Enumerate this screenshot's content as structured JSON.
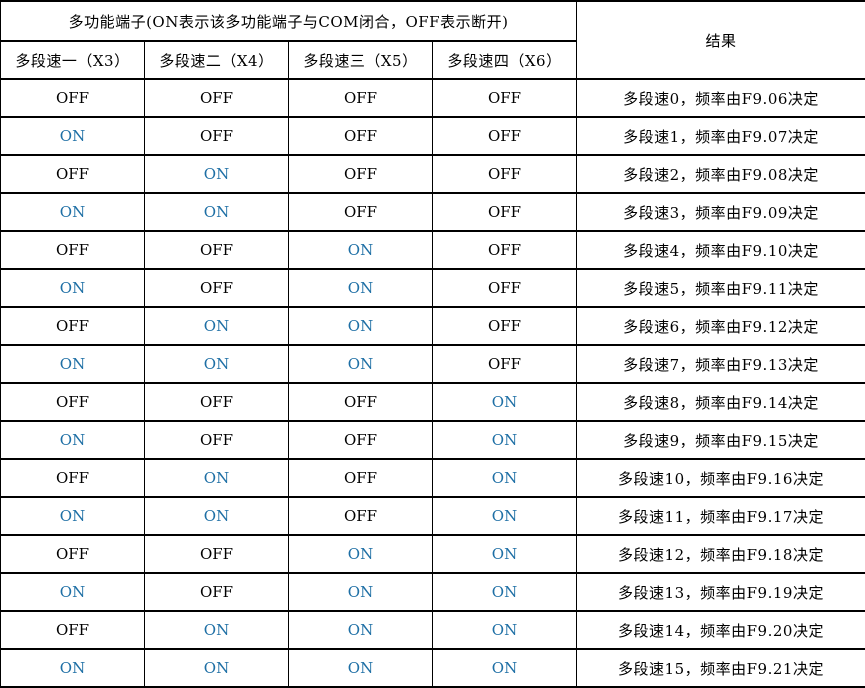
{
  "table": {
    "header_title": "多功能端子(ON表示该多功能端子与COM闭合，OFF表示断开)",
    "result_header": "结果",
    "sub_headers": [
      "多段速一（X3）",
      "多段速二（X4）",
      "多段速三（X5）",
      "多段速四（X6）"
    ],
    "on_label": "ON",
    "off_label": "OFF",
    "rows": [
      {
        "terminals": [
          "OFF",
          "OFF",
          "OFF",
          "OFF"
        ],
        "result": "多段速0，频率由F9.06决定"
      },
      {
        "terminals": [
          "ON",
          "OFF",
          "OFF",
          "OFF"
        ],
        "result": "多段速1，频率由F9.07决定"
      },
      {
        "terminals": [
          "OFF",
          "ON",
          "OFF",
          "OFF"
        ],
        "result": "多段速2，频率由F9.08决定"
      },
      {
        "terminals": [
          "ON",
          "ON",
          "OFF",
          "OFF"
        ],
        "result": "多段速3，频率由F9.09决定"
      },
      {
        "terminals": [
          "OFF",
          "OFF",
          "ON",
          "OFF"
        ],
        "result": "多段速4，频率由F9.10决定"
      },
      {
        "terminals": [
          "ON",
          "OFF",
          "ON",
          "OFF"
        ],
        "result": "多段速5，频率由F9.11决定"
      },
      {
        "terminals": [
          "OFF",
          "ON",
          "ON",
          "OFF"
        ],
        "result": "多段速6，频率由F9.12决定"
      },
      {
        "terminals": [
          "ON",
          "ON",
          "ON",
          "OFF"
        ],
        "result": "多段速7，频率由F9.13决定"
      },
      {
        "terminals": [
          "OFF",
          "OFF",
          "OFF",
          "ON"
        ],
        "result": "多段速8，频率由F9.14决定"
      },
      {
        "terminals": [
          "ON",
          "OFF",
          "OFF",
          "ON"
        ],
        "result": "多段速9，频率由F9.15决定"
      },
      {
        "terminals": [
          "OFF",
          "ON",
          "OFF",
          "ON"
        ],
        "result": "多段速10，频率由F9.16决定"
      },
      {
        "terminals": [
          "ON",
          "ON",
          "OFF",
          "ON"
        ],
        "result": "多段速11，频率由F9.17决定"
      },
      {
        "terminals": [
          "OFF",
          "OFF",
          "ON",
          "ON"
        ],
        "result": "多段速12，频率由F9.18决定"
      },
      {
        "terminals": [
          "ON",
          "OFF",
          "ON",
          "ON"
        ],
        "result": "多段速13，频率由F9.19决定"
      },
      {
        "terminals": [
          "OFF",
          "ON",
          "ON",
          "ON"
        ],
        "result": "多段速14，频率由F9.20决定"
      },
      {
        "terminals": [
          "ON",
          "ON",
          "ON",
          "ON"
        ],
        "result": "多段速15，频率由F9.21决定"
      }
    ]
  },
  "colors": {
    "on_text": "#1E6FA5",
    "off_text": "#000000",
    "border": "#000000",
    "background": "#FFFFFF"
  }
}
